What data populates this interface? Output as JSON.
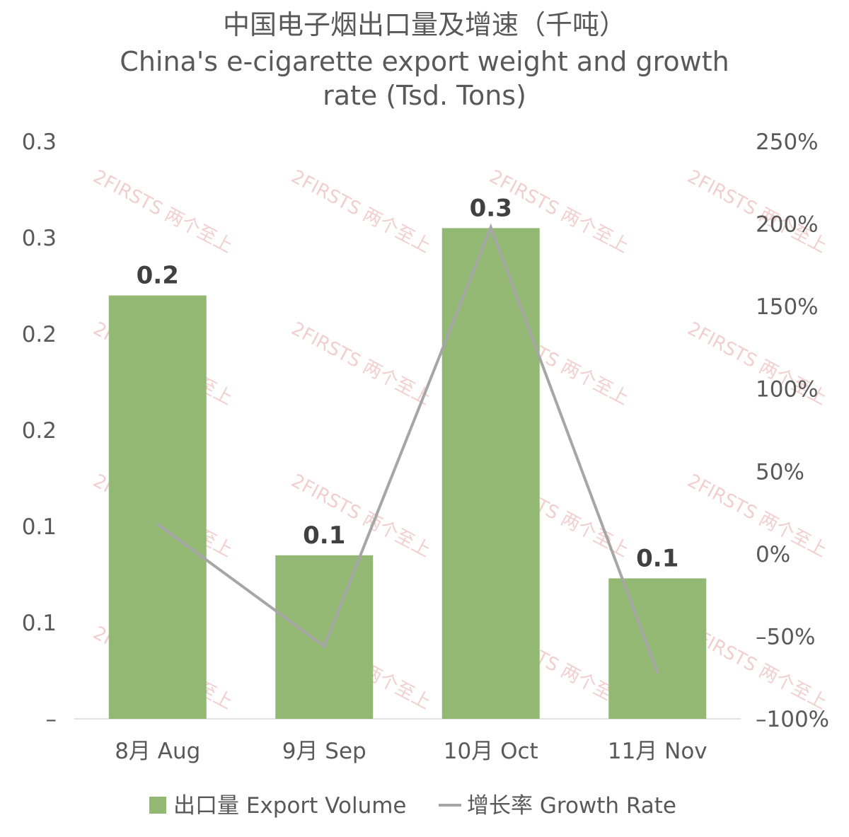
{
  "chart_data": {
    "type": "bar",
    "title": "中国电子烟出口量及增速（千吨）",
    "subtitle_lines": [
      "China's e-cigarette export weight and growth",
      "rate (Tsd. Tons)"
    ],
    "categories": [
      "8月 Aug",
      "9月 Sep",
      "10月 Oct",
      "11月 Nov"
    ],
    "series": [
      {
        "name": "出口量 Export Volume",
        "type": "bar",
        "axis": "left",
        "color": "#93b874",
        "values": [
          0.22,
          0.085,
          0.255,
          0.073
        ],
        "data_labels": [
          "0.2",
          "0.1",
          "0.3",
          "0.1"
        ]
      },
      {
        "name": "增长率 Growth Rate",
        "type": "line",
        "axis": "right",
        "color": "#a6a6a6",
        "values": [
          18,
          -56,
          198,
          -72
        ]
      }
    ],
    "ylim": [
      0,
      0.3
    ],
    "y_ticks": [
      0,
      0.05,
      0.1,
      0.15,
      0.2,
      0.25,
      0.3
    ],
    "y_tick_labels": [
      "–",
      "0.1",
      "0.1",
      "0.2",
      "0.2",
      "0.3",
      "0.3"
    ],
    "y2lim": [
      -100,
      250
    ],
    "y2_ticks": [
      -100,
      -50,
      0,
      50,
      100,
      150,
      200,
      250
    ],
    "y2_tick_labels": [
      "–100%",
      "–50%",
      "0%",
      "50%",
      "100%",
      "150%",
      "200%",
      "250%"
    ],
    "grid": false,
    "legend_position": "bottom",
    "watermark": "2FIRSTS 两个至上"
  }
}
